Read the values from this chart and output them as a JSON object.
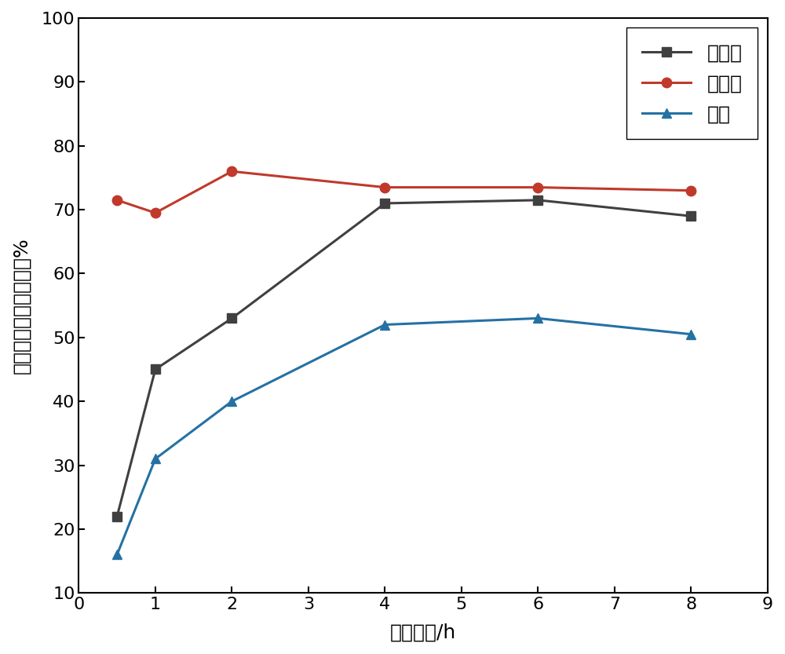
{
  "x": [
    0.5,
    1,
    2,
    4,
    6,
    8
  ],
  "conversion": [
    22,
    45,
    53,
    71,
    71.5,
    69
  ],
  "selectivity": [
    71.5,
    69.5,
    76,
    73.5,
    73.5,
    73
  ],
  "yield": [
    16,
    31,
    40,
    52,
    53,
    50.5
  ],
  "conversion_color": "#404040",
  "selectivity_color": "#C0392B",
  "yield_color": "#2471A3",
  "legend_conversion": "转化率",
  "legend_selectivity": "选择性",
  "legend_yield": "收率",
  "xlabel": "反应时间/h",
  "ylabel": "转化率、选择性、收率%",
  "xlim": [
    0,
    9
  ],
  "ylim": [
    10,
    100
  ],
  "xticks": [
    0,
    1,
    2,
    3,
    4,
    5,
    6,
    7,
    8,
    9
  ],
  "yticks": [
    10,
    20,
    30,
    40,
    50,
    60,
    70,
    80,
    90,
    100
  ],
  "linewidth": 2.2,
  "markersize": 9,
  "tick_fontsize": 16,
  "label_fontsize": 18,
  "legend_fontsize": 18,
  "background_color": "#ffffff"
}
